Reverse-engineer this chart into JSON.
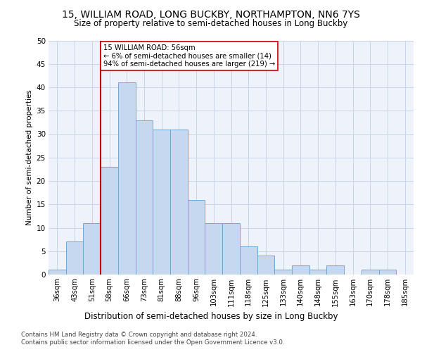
{
  "title1": "15, WILLIAM ROAD, LONG BUCKBY, NORTHAMPTON, NN6 7YS",
  "title2": "Size of property relative to semi-detached houses in Long Buckby",
  "xlabel": "Distribution of semi-detached houses by size in Long Buckby",
  "ylabel": "Number of semi-detached properties",
  "categories": [
    "36sqm",
    "43sqm",
    "51sqm",
    "58sqm",
    "66sqm",
    "73sqm",
    "81sqm",
    "88sqm",
    "96sqm",
    "103sqm",
    "111sqm",
    "118sqm",
    "125sqm",
    "133sqm",
    "140sqm",
    "148sqm",
    "155sqm",
    "163sqm",
    "170sqm",
    "178sqm",
    "185sqm"
  ],
  "values": [
    1,
    7,
    11,
    23,
    41,
    33,
    31,
    31,
    16,
    11,
    11,
    6,
    4,
    1,
    2,
    1,
    2,
    0,
    1,
    1,
    0
  ],
  "bar_color": "#c5d8ef",
  "bar_edge_color": "#6fa8d4",
  "vline_index": 3,
  "vline_color": "#cc0000",
  "annotation_line1": "15 WILLIAM ROAD: 56sqm",
  "annotation_line2": "← 6% of semi-detached houses are smaller (14)",
  "annotation_line3": "94% of semi-detached houses are larger (219) →",
  "ylim": [
    0,
    50
  ],
  "yticks": [
    0,
    5,
    10,
    15,
    20,
    25,
    30,
    35,
    40,
    45,
    50
  ],
  "bg_color": "#eef2fa",
  "grid_color": "#c8d4e8",
  "footer1": "Contains HM Land Registry data © Crown copyright and database right 2024.",
  "footer2": "Contains public sector information licensed under the Open Government Licence v3.0."
}
